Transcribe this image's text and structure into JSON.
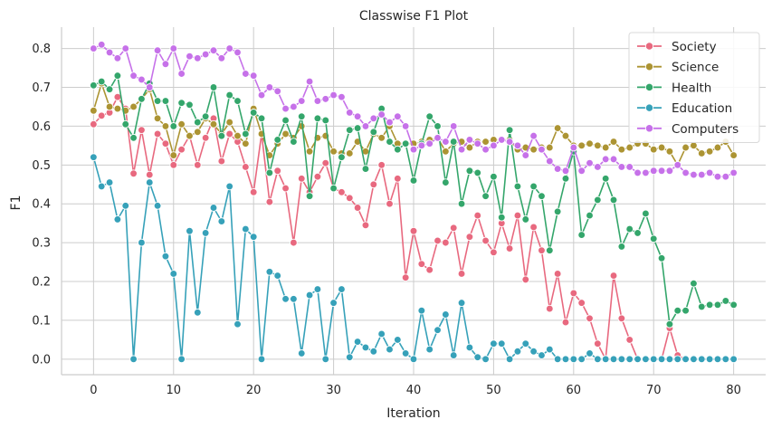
{
  "chart_data": {
    "type": "line",
    "title": "Classwise F1 Plot",
    "xlabel": "Iteration",
    "ylabel": "F1",
    "xlim": [
      -4,
      84
    ],
    "ylim": [
      -0.04,
      0.855
    ],
    "xticks": [
      "0",
      "10",
      "20",
      "30",
      "40",
      "50",
      "60",
      "70",
      "80"
    ],
    "yticks": [
      "0.0",
      "0.1",
      "0.2",
      "0.3",
      "0.4",
      "0.5",
      "0.6",
      "0.7",
      "0.8"
    ],
    "grid": true,
    "legend": "top-right",
    "x": [
      0,
      1,
      2,
      3,
      4,
      5,
      6,
      7,
      8,
      9,
      10,
      11,
      12,
      13,
      14,
      15,
      16,
      17,
      18,
      19,
      20,
      21,
      22,
      23,
      24,
      25,
      26,
      27,
      28,
      29,
      30,
      31,
      32,
      33,
      34,
      35,
      36,
      37,
      38,
      39,
      40,
      41,
      42,
      43,
      44,
      45,
      46,
      47,
      48,
      49,
      50,
      51,
      52,
      53,
      54,
      55,
      56,
      57,
      58,
      59,
      60,
      61,
      62,
      63,
      64,
      65,
      66,
      67,
      68,
      69,
      70,
      71,
      72,
      73,
      74,
      75,
      76,
      77,
      78,
      79,
      80
    ],
    "series": [
      {
        "name": "Society",
        "color": "#e8697f",
        "values": [
          0.605,
          0.627,
          0.635,
          0.675,
          0.645,
          0.478,
          0.59,
          0.475,
          0.58,
          0.555,
          0.5,
          0.54,
          0.575,
          0.5,
          0.57,
          0.62,
          0.51,
          0.58,
          0.56,
          0.495,
          0.43,
          0.58,
          0.405,
          0.485,
          0.44,
          0.3,
          0.465,
          0.43,
          0.47,
          0.505,
          0.44,
          0.43,
          0.415,
          0.39,
          0.345,
          0.45,
          0.5,
          0.4,
          0.465,
          0.21,
          0.33,
          0.245,
          0.23,
          0.305,
          0.3,
          0.338,
          0.22,
          0.315,
          0.37,
          0.305,
          0.275,
          0.35,
          0.285,
          0.37,
          0.205,
          0.34,
          0.28,
          0.13,
          0.22,
          0.095,
          0.17,
          0.145,
          0.105,
          0.04,
          0.0,
          0.215,
          0.105,
          0.05,
          0.0,
          0.0,
          0.0,
          0.0,
          0.08,
          0.01,
          0.0,
          0.0,
          0.0,
          0.0,
          0.0,
          0.0,
          0.0
        ]
      },
      {
        "name": "Science",
        "color": "#ac9433",
        "values": [
          0.64,
          0.71,
          0.65,
          0.645,
          0.64,
          0.65,
          0.67,
          0.695,
          0.62,
          0.6,
          0.525,
          0.605,
          0.575,
          0.585,
          0.62,
          0.605,
          0.58,
          0.61,
          0.575,
          0.555,
          0.645,
          0.58,
          0.525,
          0.555,
          0.58,
          0.57,
          0.6,
          0.535,
          0.57,
          0.575,
          0.535,
          0.53,
          0.53,
          0.56,
          0.535,
          0.58,
          0.57,
          0.6,
          0.555,
          0.555,
          0.555,
          0.56,
          0.565,
          0.57,
          0.535,
          0.555,
          0.56,
          0.545,
          0.56,
          0.56,
          0.565,
          0.565,
          0.565,
          0.54,
          0.545,
          0.54,
          0.545,
          0.545,
          0.595,
          0.575,
          0.55,
          0.55,
          0.555,
          0.55,
          0.545,
          0.56,
          0.54,
          0.545,
          0.555,
          0.555,
          0.54,
          0.545,
          0.535,
          0.5,
          0.545,
          0.55,
          0.53,
          0.535,
          0.545,
          0.56,
          0.525
        ]
      },
      {
        "name": "Health",
        "color": "#34a66b",
        "values": [
          0.705,
          0.715,
          0.695,
          0.73,
          0.605,
          0.57,
          0.67,
          0.71,
          0.665,
          0.665,
          0.6,
          0.66,
          0.655,
          0.61,
          0.625,
          0.7,
          0.575,
          0.68,
          0.665,
          0.58,
          0.635,
          0.62,
          0.48,
          0.565,
          0.615,
          0.56,
          0.625,
          0.42,
          0.62,
          0.615,
          0.44,
          0.52,
          0.59,
          0.595,
          0.49,
          0.585,
          0.645,
          0.56,
          0.54,
          0.555,
          0.46,
          0.555,
          0.625,
          0.6,
          0.455,
          0.56,
          0.4,
          0.485,
          0.48,
          0.42,
          0.47,
          0.365,
          0.59,
          0.445,
          0.36,
          0.445,
          0.42,
          0.28,
          0.38,
          0.465,
          0.535,
          0.32,
          0.37,
          0.41,
          0.465,
          0.41,
          0.29,
          0.335,
          0.325,
          0.375,
          0.31,
          0.26,
          0.09,
          0.125,
          0.125,
          0.195,
          0.135,
          0.14,
          0.14,
          0.15,
          0.14
        ]
      },
      {
        "name": "Education",
        "color": "#36a1b9",
        "values": [
          0.52,
          0.445,
          0.455,
          0.36,
          0.395,
          0.0,
          0.3,
          0.455,
          0.395,
          0.265,
          0.22,
          0.0,
          0.33,
          0.12,
          0.325,
          0.39,
          0.355,
          0.445,
          0.09,
          0.335,
          0.315,
          0.0,
          0.225,
          0.215,
          0.155,
          0.155,
          0.015,
          0.165,
          0.18,
          0.0,
          0.145,
          0.18,
          0.005,
          0.045,
          0.03,
          0.02,
          0.065,
          0.025,
          0.05,
          0.015,
          0.0,
          0.125,
          0.025,
          0.075,
          0.115,
          0.01,
          0.145,
          0.03,
          0.005,
          0.0,
          0.04,
          0.04,
          0.0,
          0.02,
          0.04,
          0.02,
          0.01,
          0.025,
          0.0,
          0.0,
          0.0,
          0.0,
          0.015,
          0.0,
          0.0,
          0.0,
          0.0,
          0.0,
          0.0,
          0.0,
          0.0,
          0.0,
          0.0,
          0.0,
          0.0,
          0.0,
          0.0,
          0.0,
          0.0,
          0.0,
          0.0
        ]
      },
      {
        "name": "Computers",
        "color": "#c671e9",
        "values": [
          0.8,
          0.81,
          0.79,
          0.775,
          0.8,
          0.73,
          0.72,
          0.7,
          0.795,
          0.76,
          0.8,
          0.735,
          0.78,
          0.775,
          0.785,
          0.795,
          0.775,
          0.8,
          0.79,
          0.735,
          0.73,
          0.68,
          0.7,
          0.69,
          0.645,
          0.65,
          0.665,
          0.715,
          0.665,
          0.67,
          0.68,
          0.675,
          0.635,
          0.625,
          0.6,
          0.62,
          0.63,
          0.61,
          0.625,
          0.6,
          0.54,
          0.55,
          0.555,
          0.57,
          0.56,
          0.6,
          0.54,
          0.565,
          0.555,
          0.54,
          0.55,
          0.565,
          0.56,
          0.55,
          0.525,
          0.575,
          0.54,
          0.51,
          0.49,
          0.485,
          0.545,
          0.485,
          0.505,
          0.495,
          0.515,
          0.515,
          0.495,
          0.495,
          0.48,
          0.48,
          0.485,
          0.485,
          0.485,
          0.5,
          0.48,
          0.475,
          0.475,
          0.48,
          0.47,
          0.47,
          0.48
        ]
      }
    ]
  }
}
